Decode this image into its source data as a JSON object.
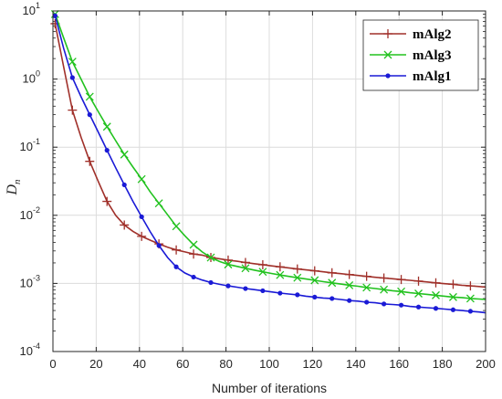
{
  "chart_data": {
    "type": "line",
    "xlabel": "Number of iterations",
    "ylabel_main": "D",
    "ylabel_sub": "n",
    "x_range": [
      0,
      200
    ],
    "y_range": [
      0.0001,
      10
    ],
    "y_scale": "log",
    "grid": true,
    "legend_position": "top-right",
    "x_ticks": [
      0,
      20,
      40,
      60,
      80,
      100,
      120,
      140,
      160,
      180,
      200
    ],
    "x_tick_labels": [
      "0",
      "20",
      "40",
      "60",
      "80",
      "100",
      "120",
      "140",
      "160",
      "180",
      "200"
    ],
    "y_ticks": [
      {
        "value": 0.0001,
        "base": "10",
        "exp": "-4"
      },
      {
        "value": 0.001,
        "base": "10",
        "exp": "-3"
      },
      {
        "value": 0.01,
        "base": "10",
        "exp": "-2"
      },
      {
        "value": 0.1,
        "base": "10",
        "exp": "-1"
      },
      {
        "value": 1,
        "base": "10",
        "exp": "0"
      },
      {
        "value": 10,
        "base": "10",
        "exp": "1"
      }
    ],
    "series": [
      {
        "name": "mAlg2",
        "color": "#a0302a",
        "marker": "plus",
        "x": [
          1,
          5,
          9,
          13,
          17,
          21,
          25,
          29,
          33,
          37,
          41,
          45,
          49,
          53,
          57,
          61,
          65,
          69,
          73,
          77,
          81,
          85,
          89,
          93,
          97,
          101,
          105,
          109,
          113,
          117,
          121,
          125,
          129,
          133,
          137,
          141,
          145,
          149,
          153,
          157,
          161,
          165,
          169,
          173,
          177,
          181,
          185,
          189,
          193,
          197,
          200
        ],
        "y": [
          6.5,
          1.5,
          0.35,
          0.14,
          0.062,
          0.031,
          0.016,
          0.01,
          0.0072,
          0.0058,
          0.0049,
          0.0043,
          0.0038,
          0.0034,
          0.0031,
          0.0029,
          0.0027,
          0.0026,
          0.0024,
          0.0023,
          0.0022,
          0.00212,
          0.00203,
          0.00195,
          0.00188,
          0.00181,
          0.00175,
          0.00169,
          0.00163,
          0.00158,
          0.00153,
          0.00148,
          0.00143,
          0.00139,
          0.00135,
          0.00131,
          0.00127,
          0.00123,
          0.0012,
          0.00117,
          0.00114,
          0.00111,
          0.00108,
          0.00105,
          0.00102,
          0.00099,
          0.00097,
          0.00094,
          0.00092,
          0.0009,
          0.00088
        ],
        "marker_x": [
          1,
          9,
          17,
          25,
          33,
          41,
          49,
          57,
          65,
          73,
          81,
          89,
          97,
          105,
          113,
          121,
          129,
          137,
          145,
          153,
          161,
          169,
          177,
          185,
          193
        ],
        "marker_y": [
          6.5,
          0.35,
          0.062,
          0.016,
          0.0072,
          0.0049,
          0.0038,
          0.0031,
          0.0027,
          0.0024,
          0.0022,
          0.00203,
          0.00188,
          0.00175,
          0.00163,
          0.00153,
          0.00143,
          0.00135,
          0.00127,
          0.0012,
          0.00114,
          0.00108,
          0.00102,
          0.00097,
          0.00092
        ]
      },
      {
        "name": "mAlg3",
        "color": "#22c21f",
        "marker": "x",
        "x": [
          1,
          5,
          9,
          13,
          17,
          21,
          25,
          29,
          33,
          37,
          41,
          45,
          49,
          53,
          57,
          61,
          65,
          69,
          73,
          77,
          81,
          85,
          89,
          93,
          97,
          101,
          105,
          109,
          113,
          117,
          121,
          125,
          129,
          133,
          137,
          141,
          145,
          149,
          153,
          157,
          161,
          165,
          169,
          173,
          177,
          181,
          185,
          189,
          193,
          197,
          200
        ],
        "y": [
          9,
          4.0,
          1.8,
          1.0,
          0.55,
          0.33,
          0.2,
          0.125,
          0.078,
          0.051,
          0.034,
          0.022,
          0.015,
          0.0102,
          0.0069,
          0.005,
          0.0037,
          0.0029,
          0.0024,
          0.0021,
          0.0019,
          0.00178,
          0.00167,
          0.00157,
          0.00148,
          0.0014,
          0.00133,
          0.00127,
          0.00121,
          0.00116,
          0.00111,
          0.00106,
          0.00102,
          0.00098,
          0.00094,
          0.00091,
          0.00087,
          0.00084,
          0.00081,
          0.00078,
          0.00076,
          0.00073,
          0.00071,
          0.00069,
          0.00067,
          0.00065,
          0.00063,
          0.00062,
          0.0006,
          0.00059,
          0.00058
        ],
        "marker_x": [
          1,
          9,
          17,
          25,
          33,
          41,
          49,
          57,
          65,
          73,
          81,
          89,
          97,
          105,
          113,
          121,
          129,
          137,
          145,
          153,
          161,
          169,
          177,
          185,
          193
        ],
        "marker_y": [
          9,
          1.8,
          0.55,
          0.2,
          0.078,
          0.034,
          0.015,
          0.0069,
          0.0037,
          0.0024,
          0.0019,
          0.00167,
          0.00148,
          0.00133,
          0.00121,
          0.00111,
          0.00102,
          0.00094,
          0.00087,
          0.00081,
          0.00076,
          0.00071,
          0.00067,
          0.00063,
          0.0006
        ]
      },
      {
        "name": "mAlg1",
        "color": "#1a1ad6",
        "marker": "dot",
        "x": [
          1,
          5,
          9,
          13,
          17,
          21,
          25,
          29,
          33,
          37,
          41,
          45,
          49,
          53,
          57,
          61,
          65,
          69,
          73,
          77,
          81,
          85,
          89,
          93,
          97,
          101,
          105,
          109,
          113,
          117,
          121,
          125,
          129,
          133,
          137,
          141,
          145,
          149,
          153,
          157,
          161,
          165,
          169,
          173,
          177,
          181,
          185,
          189,
          193,
          197,
          200
        ],
        "y": [
          8.5,
          2.8,
          1.05,
          0.55,
          0.3,
          0.165,
          0.09,
          0.05,
          0.028,
          0.016,
          0.0095,
          0.0057,
          0.0036,
          0.0024,
          0.00175,
          0.00142,
          0.00124,
          0.00112,
          0.00103,
          0.00097,
          0.00092,
          0.00088,
          0.00084,
          0.00081,
          0.00078,
          0.00075,
          0.00072,
          0.0007,
          0.00068,
          0.00065,
          0.00063,
          0.00061,
          0.0006,
          0.00058,
          0.00056,
          0.00055,
          0.00053,
          0.00052,
          0.0005,
          0.00049,
          0.00048,
          0.00046,
          0.00045,
          0.00044,
          0.00043,
          0.00042,
          0.00041,
          0.0004,
          0.00039,
          0.00038,
          0.00037
        ],
        "marker_x": [
          1,
          9,
          17,
          25,
          33,
          41,
          49,
          57,
          65,
          73,
          81,
          89,
          97,
          105,
          113,
          121,
          129,
          137,
          145,
          153,
          161,
          169,
          177,
          185,
          193
        ],
        "marker_y": [
          8.5,
          1.05,
          0.3,
          0.09,
          0.028,
          0.0095,
          0.0036,
          0.00175,
          0.00124,
          0.00103,
          0.00092,
          0.00084,
          0.00078,
          0.00072,
          0.00068,
          0.00063,
          0.0006,
          0.00056,
          0.00053,
          0.0005,
          0.00048,
          0.00045,
          0.00043,
          0.00041,
          0.00039
        ]
      }
    ]
  }
}
